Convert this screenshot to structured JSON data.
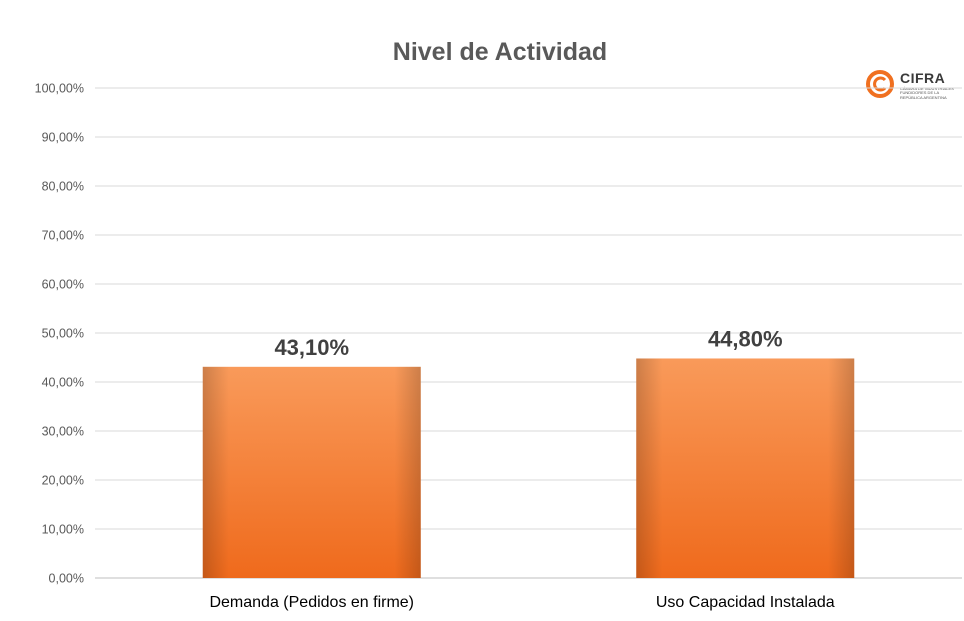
{
  "chart_data": {
    "type": "bar",
    "title": "Nivel de Actividad",
    "categories": [
      "Demanda (Pedidos en firme)",
      "Uso Capacidad Instalada"
    ],
    "values": [
      43.1,
      44.8
    ],
    "data_labels": [
      "43,10%",
      "44,80%"
    ],
    "ylim": [
      0,
      100
    ],
    "yticks": [
      0,
      10,
      20,
      30,
      40,
      50,
      60,
      70,
      80,
      90,
      100
    ],
    "ytick_labels": [
      "0,00%",
      "10,00%",
      "20,00%",
      "30,00%",
      "40,00%",
      "50,00%",
      "60,00%",
      "70,00%",
      "80,00%",
      "90,00%",
      "100,00%"
    ],
    "grid": true,
    "legend": "none",
    "bar_color": "#f0762a",
    "bar_color_light": "#f9a066"
  },
  "logo": {
    "brand": "CIFRA",
    "tagline": "Cámara de Industriales Fundidores de la República Argentina",
    "color": "#f07020"
  }
}
